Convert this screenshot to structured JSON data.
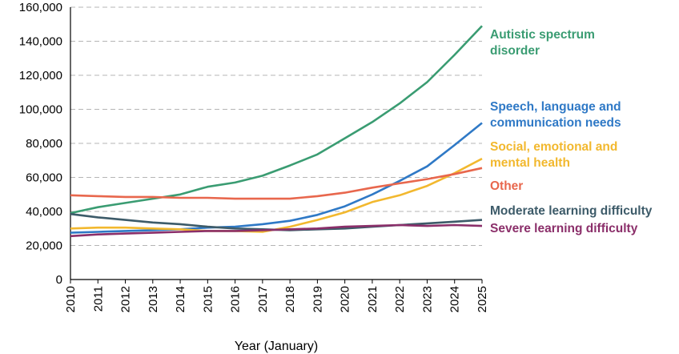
{
  "chart_data": {
    "type": "line",
    "title": "",
    "xlabel": "Year (January)",
    "ylabel": "",
    "x": [
      2010,
      2011,
      2012,
      2013,
      2014,
      2015,
      2016,
      2017,
      2018,
      2019,
      2020,
      2021,
      2022,
      2023,
      2024,
      2025
    ],
    "ylim": [
      0,
      160000
    ],
    "y_ticks": [
      "0",
      "20,000",
      "40,000",
      "60,000",
      "80,000",
      "100,000",
      "120,000",
      "140,000",
      "160,000"
    ],
    "y_tick_values": [
      0,
      20000,
      40000,
      60000,
      80000,
      100000,
      120000,
      140000,
      160000
    ],
    "x_ticks": [
      "2010",
      "2011",
      "2012",
      "2013",
      "2014",
      "2015",
      "2016",
      "2017",
      "2018",
      "2019",
      "2020",
      "2021",
      "2022",
      "2023",
      "2024",
      "2025"
    ],
    "grid": "horizontal dashed",
    "legend": "direct labels at right",
    "series": [
      {
        "name": "Autistic spectrum disorder",
        "label_lines": [
          "Autistic spectrum",
          "disorder"
        ],
        "color": "#3a9c72",
        "values": [
          39000,
          42500,
          45000,
          47500,
          50000,
          54500,
          57000,
          61000,
          67000,
          73500,
          83000,
          92500,
          103500,
          116000,
          132000,
          149000
        ]
      },
      {
        "name": "Speech, language and communication needs",
        "label_lines": [
          "Speech, language and",
          "communication needs"
        ],
        "color": "#2f79c6",
        "values": [
          27500,
          28000,
          28500,
          29000,
          29500,
          30500,
          31000,
          32500,
          34500,
          38000,
          43000,
          50000,
          58000,
          66500,
          79000,
          92000
        ]
      },
      {
        "name": "Social, emotional and mental health",
        "label_lines": [
          "Social, emotional and",
          "mental health"
        ],
        "color": "#f2b82e",
        "values": [
          30000,
          30500,
          30500,
          30000,
          29500,
          28500,
          28500,
          28000,
          31000,
          35000,
          39500,
          45500,
          49500,
          55000,
          62500,
          71000
        ]
      },
      {
        "name": "Other",
        "label_lines": [
          "Other"
        ],
        "color": "#e8674d",
        "values": [
          49500,
          49000,
          48500,
          48500,
          48000,
          48000,
          47500,
          47500,
          47500,
          49000,
          51000,
          54000,
          56500,
          59000,
          62000,
          65500
        ]
      },
      {
        "name": "Moderate learning difficulty",
        "label_lines": [
          "Moderate learning difficulty"
        ],
        "color": "#3d5b69",
        "values": [
          38500,
          36500,
          35000,
          33500,
          32500,
          31000,
          30000,
          29500,
          29000,
          29500,
          30000,
          31000,
          32000,
          33000,
          34000,
          35000
        ]
      },
      {
        "name": "Severe learning difficulty",
        "label_lines": [
          "Severe learning difficulty"
        ],
        "color": "#8b2f6a",
        "values": [
          25500,
          26500,
          27000,
          27500,
          28000,
          28500,
          28500,
          29000,
          29500,
          30000,
          31000,
          31500,
          32000,
          31500,
          32000,
          31500
        ]
      }
    ]
  }
}
